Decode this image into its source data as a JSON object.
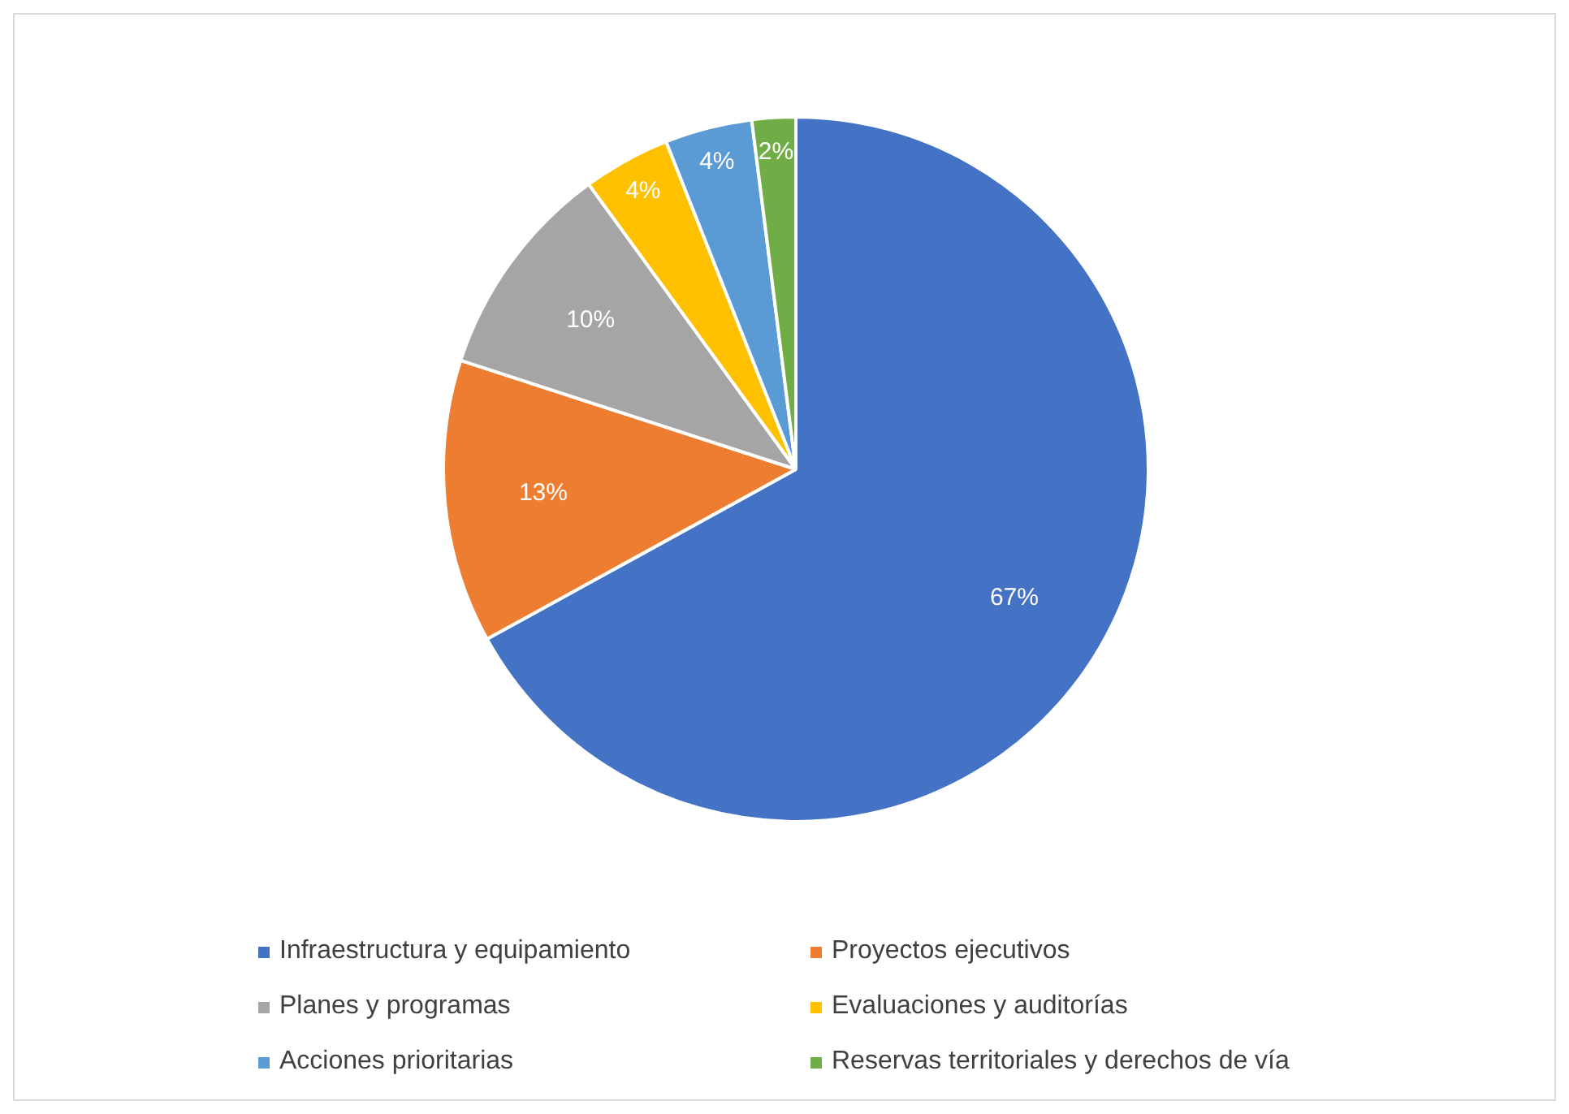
{
  "chart_data": {
    "type": "pie",
    "categories": [
      "Infraestructura y equipamiento",
      "Proyectos ejecutivos",
      "Planes y programas",
      "Evaluaciones y auditorías",
      "Acciones prioritarias",
      "Reservas territoriales y derechos de vía"
    ],
    "values": [
      67,
      13,
      10,
      4,
      4,
      2
    ],
    "colors": [
      "#4472c4",
      "#ed7d31",
      "#a5a5a5",
      "#ffc000",
      "#5b9bd5",
      "#70ad47"
    ],
    "value_labels": [
      "67%",
      "13%",
      "10%",
      "4%",
      "4%",
      "2%"
    ],
    "legend": "bottom"
  }
}
